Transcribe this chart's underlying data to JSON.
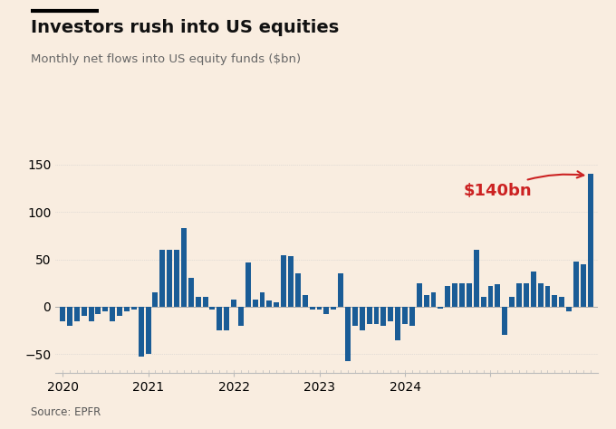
{
  "title": "Investors rush into US equities",
  "subtitle": "Monthly net flows into US equity funds ($bn)",
  "source": "Source: EPFR",
  "bar_color": "#1a5c96",
  "background_color": "#f9ede0",
  "annotation_text": "$140bn",
  "annotation_color": "#cc2222",
  "ylim": [
    -70,
    165
  ],
  "yticks": [
    -50,
    0,
    50,
    100,
    150
  ],
  "values": [
    -15,
    -20,
    -15,
    -10,
    -15,
    -8,
    -5,
    -15,
    -10,
    -5,
    -3,
    -52,
    -50,
    15,
    60,
    60,
    60,
    83,
    30,
    10,
    10,
    -3,
    -25,
    -25,
    8,
    -20,
    47,
    8,
    15,
    7,
    5,
    54,
    53,
    35,
    12,
    -3,
    -3,
    -8,
    -3,
    35,
    -57,
    -20,
    -25,
    -18,
    -18,
    -20,
    -15,
    -35,
    -18,
    -20,
    25,
    12,
    15,
    -2,
    22,
    25,
    25,
    25,
    60,
    10,
    22,
    24,
    -30,
    10,
    25,
    25,
    37,
    25,
    22,
    12,
    10,
    -5,
    48,
    45,
    140
  ],
  "year_bar_starts": [
    0,
    12,
    24,
    36,
    48,
    60
  ],
  "year_labels": [
    "2020",
    "2021",
    "2022",
    "2023",
    "2024",
    ""
  ],
  "title_fontsize": 14,
  "subtitle_fontsize": 9.5,
  "source_fontsize": 8.5,
  "tick_fontsize": 10,
  "annot_fontsize": 13
}
